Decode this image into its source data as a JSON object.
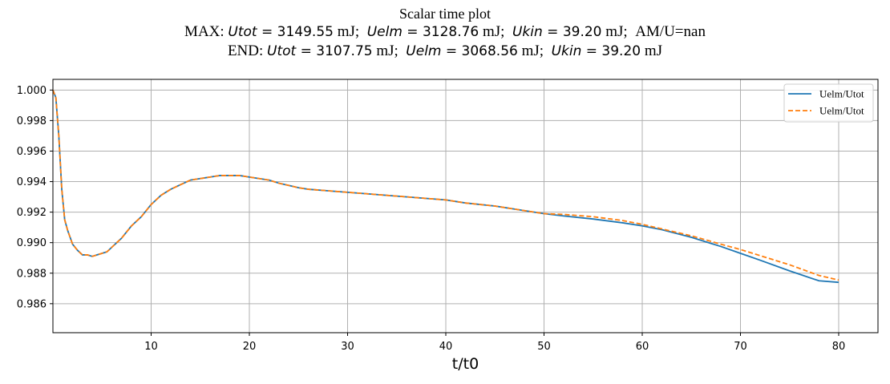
{
  "chart_data": {
    "type": "line",
    "title": "Scalar time plot",
    "max_line": {
      "prefix": "MAX:",
      "items": [
        {
          "name": "Utot",
          "value": "3149.55",
          "unit": "mJ;"
        },
        {
          "name": "Uelm",
          "value": "3128.76",
          "unit": "mJ;"
        },
        {
          "name": "Ukin",
          "value": "39.20",
          "unit": "mJ;"
        }
      ],
      "suffix": "AM/U=nan"
    },
    "end_line": {
      "prefix": "END:",
      "items": [
        {
          "name": "Utot",
          "value": "3107.75",
          "unit": "mJ;"
        },
        {
          "name": "Uelm",
          "value": "3068.56",
          "unit": "mJ;"
        },
        {
          "name": "Ukin",
          "value": "39.20",
          "unit": "mJ"
        }
      ]
    },
    "xlabel": "t/t0",
    "ylabel": "",
    "xlim": [
      0,
      84
    ],
    "ylim": [
      0.9841,
      1.0007
    ],
    "xticks": [
      10,
      20,
      30,
      40,
      50,
      60,
      70,
      80
    ],
    "yticks": [
      0.986,
      0.988,
      0.99,
      0.992,
      0.994,
      0.996,
      0.998,
      1.0
    ],
    "grid": true,
    "legend_position": "top-right",
    "series": [
      {
        "name": "Uelm/Utot",
        "color": "#1f77b4",
        "style": "solid",
        "x": [
          0,
          0.3,
          0.6,
          0.9,
          1.2,
          1.5,
          2,
          2.5,
          3,
          3.5,
          4,
          4.5,
          5,
          5.5,
          6,
          6.5,
          7,
          7.5,
          8,
          9,
          10,
          11,
          12,
          13,
          14,
          15,
          16,
          17,
          18,
          19,
          20,
          21,
          22,
          23,
          24,
          25,
          26,
          28,
          30,
          32,
          35,
          38,
          40,
          42,
          45,
          48,
          50,
          52,
          55,
          58,
          60,
          62,
          65,
          68,
          70,
          72,
          75,
          78,
          80
        ],
        "y": [
          1.0,
          0.9995,
          0.997,
          0.9935,
          0.9915,
          0.9908,
          0.9899,
          0.9895,
          0.9892,
          0.9892,
          0.9891,
          0.9892,
          0.9893,
          0.9894,
          0.9897,
          0.99,
          0.9903,
          0.9907,
          0.9911,
          0.9917,
          0.9925,
          0.9931,
          0.9935,
          0.9938,
          0.9941,
          0.9942,
          0.9943,
          0.9944,
          0.9944,
          0.9944,
          0.9943,
          0.9942,
          0.9941,
          0.9939,
          0.99375,
          0.9936,
          0.9935,
          0.9934,
          0.9933,
          0.9932,
          0.99305,
          0.9929,
          0.9928,
          0.9926,
          0.9924,
          0.9921,
          0.9919,
          0.99175,
          0.99155,
          0.9913,
          0.9911,
          0.99085,
          0.99035,
          0.98975,
          0.9893,
          0.98885,
          0.98815,
          0.9875,
          0.9874
        ]
      },
      {
        "name": "Uelm/Utot",
        "color": "#ff7f0e",
        "style": "dashed",
        "x": [
          0,
          0.3,
          0.6,
          0.9,
          1.2,
          1.5,
          2,
          2.5,
          3,
          3.5,
          4,
          4.5,
          5,
          5.5,
          6,
          6.5,
          7,
          7.5,
          8,
          9,
          10,
          11,
          12,
          13,
          14,
          15,
          16,
          17,
          18,
          19,
          20,
          21,
          22,
          23,
          24,
          25,
          26,
          28,
          30,
          32,
          35,
          38,
          40,
          42,
          45,
          48,
          50,
          52,
          55,
          58,
          60,
          62,
          65,
          68,
          70,
          72,
          75,
          78,
          80
        ],
        "y": [
          1.0,
          0.9995,
          0.997,
          0.9935,
          0.9915,
          0.9908,
          0.9899,
          0.9895,
          0.9892,
          0.9892,
          0.9891,
          0.9892,
          0.9893,
          0.9894,
          0.9897,
          0.99,
          0.9903,
          0.9907,
          0.9911,
          0.9917,
          0.9925,
          0.9931,
          0.9935,
          0.9938,
          0.9941,
          0.9942,
          0.9943,
          0.9944,
          0.9944,
          0.9944,
          0.9943,
          0.9942,
          0.9941,
          0.9939,
          0.99375,
          0.9936,
          0.9935,
          0.9934,
          0.9933,
          0.9932,
          0.99305,
          0.9929,
          0.9928,
          0.9926,
          0.9924,
          0.9921,
          0.9919,
          0.99185,
          0.9917,
          0.99145,
          0.9912,
          0.9909,
          0.99045,
          0.9899,
          0.98955,
          0.98915,
          0.98855,
          0.98785,
          0.98755
        ]
      }
    ]
  }
}
